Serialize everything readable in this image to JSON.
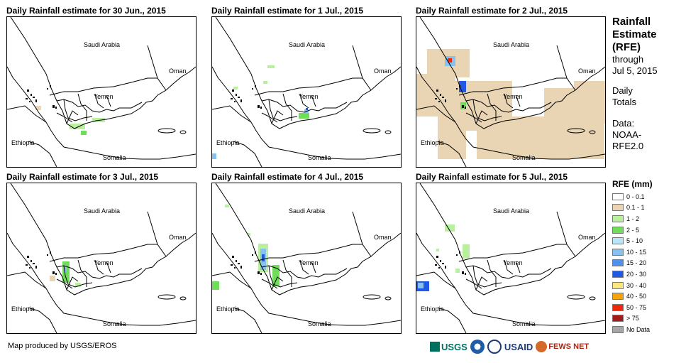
{
  "panels": [
    {
      "title": "Daily Rainfall estimate for 30 Jun., 2015",
      "rain": "p1"
    },
    {
      "title": "Daily Rainfall estimate for 1 Jul., 2015",
      "rain": "p2"
    },
    {
      "title": "Daily Rainfall estimate for 2 Jul., 2015",
      "rain": "p3"
    },
    {
      "title": "Daily Rainfall estimate for 3 Jul., 2015",
      "rain": "p4"
    },
    {
      "title": "Daily Rainfall estimate for 4 Jul., 2015",
      "rain": "p5"
    },
    {
      "title": "Daily Rainfall estimate for 5 Jul., 2015",
      "rain": "p6"
    }
  ],
  "map_labels": {
    "saudi": "Saudi Arabia",
    "oman": "Oman",
    "yemen": "Yemen",
    "ethiopia": "Ethiopia",
    "somalia": "Somalia"
  },
  "side": {
    "title": "Rainfall Estimate (RFE)",
    "through": "through",
    "date": "Jul 5, 2015",
    "totals": "Daily Totals",
    "data_label": "Data:",
    "data_source": "NOAA-RFE2.0"
  },
  "legend": {
    "title": "RFE (mm)",
    "items": [
      {
        "label": "0 - 0.1",
        "color": "#ffffff"
      },
      {
        "label": "0.1 - 1",
        "color": "#e9d5b4"
      },
      {
        "label": "1 - 2",
        "color": "#b8f0a0"
      },
      {
        "label": "2 - 5",
        "color": "#70dd5a"
      },
      {
        "label": "5 - 10",
        "color": "#b9e6f6"
      },
      {
        "label": "10 - 15",
        "color": "#87c1ef"
      },
      {
        "label": "15 - 20",
        "color": "#4f8fef"
      },
      {
        "label": "20 - 30",
        "color": "#2059e6"
      },
      {
        "label": "30 - 40",
        "color": "#fbe77d"
      },
      {
        "label": "40 - 50",
        "color": "#f5a30b"
      },
      {
        "label": "50 - 75",
        "color": "#ec2a0b"
      },
      {
        "label": "> 75",
        "color": "#a31b1b"
      },
      {
        "label": "No Data",
        "color": "#a6a6a6"
      }
    ]
  },
  "credit": "Map produced by USGS/EROS",
  "logos": [
    "USGS",
    "NOAA",
    "USAID",
    "FEWS NET"
  ],
  "colors": {
    "tan": "#e9d5b4",
    "green_light": "#b8f0a0",
    "green": "#70dd5a",
    "blue_light": "#87c1ef",
    "blue": "#2059e6",
    "red": "#ec2a0b"
  }
}
